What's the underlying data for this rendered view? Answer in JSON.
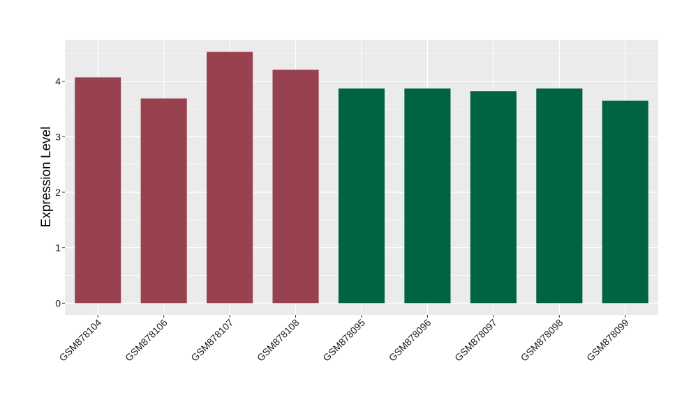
{
  "chart_data": {
    "type": "bar",
    "categories": [
      "GSM878104",
      "GSM878106",
      "GSM878107",
      "GSM878108",
      "GSM878095",
      "GSM878096",
      "GSM878097",
      "GSM878098",
      "GSM878099"
    ],
    "values": [
      4.07,
      3.69,
      4.53,
      4.21,
      3.87,
      3.87,
      3.82,
      3.87,
      3.65
    ],
    "groups": [
      "a",
      "a",
      "a",
      "a",
      "b",
      "b",
      "b",
      "b",
      "b"
    ],
    "group_colors": {
      "a": "#99424f",
      "b": "#006443"
    },
    "title": "",
    "xlabel": "",
    "ylabel": "Expression Level",
    "ylim": [
      -0.21,
      4.75
    ],
    "yticks": [
      0,
      1,
      2,
      3,
      4
    ],
    "grid": true,
    "legend": "none",
    "panel_background": "#ebebeb",
    "grid_color": "#ffffff"
  }
}
